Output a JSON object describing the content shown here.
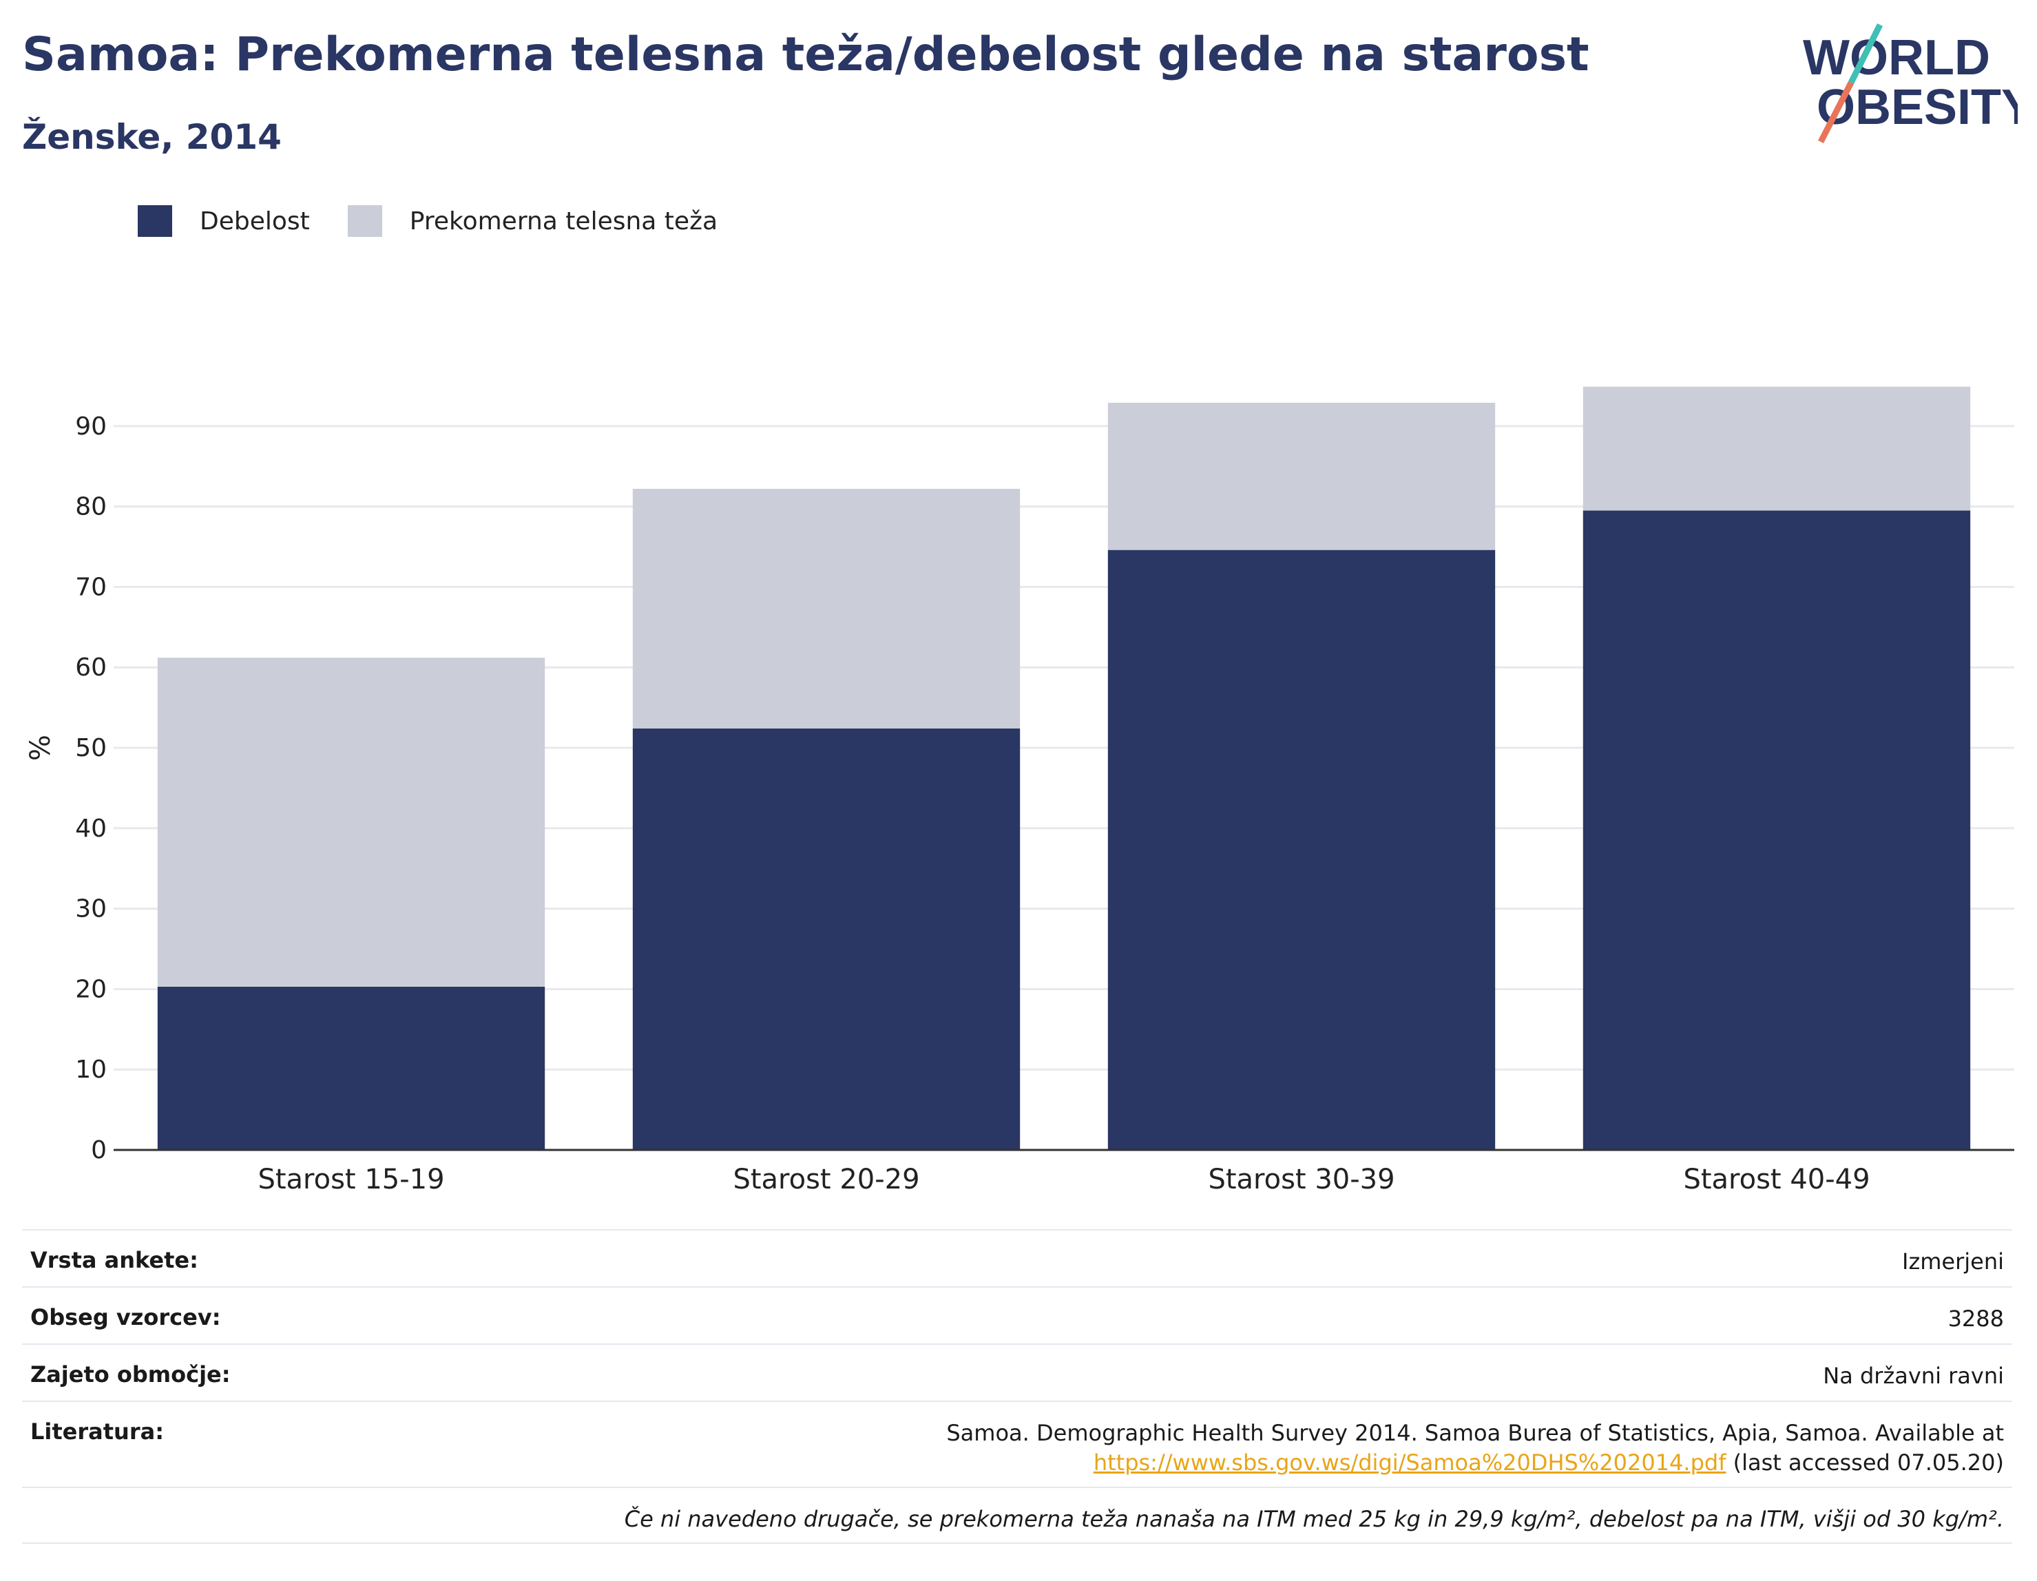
{
  "header": {
    "title": "Samoa: Prekomerna telesna teža/debelost glede na starost",
    "subtitle": "Ženske, 2014"
  },
  "logo": {
    "line1": "WORLD",
    "line2": "OBESITY"
  },
  "legend": [
    {
      "label": "Debelost",
      "color": "#2a3663"
    },
    {
      "label": "Prekomerna telesna teža",
      "color": "#cbcdd8"
    }
  ],
  "chart_data": {
    "type": "bar",
    "stacked": true,
    "categories": [
      "Starost 15-19",
      "Starost 20-29",
      "Starost 30-39",
      "Starost 40-49"
    ],
    "series": [
      {
        "name": "Debelost",
        "values": [
          20.3,
          52.4,
          74.6,
          79.5
        ],
        "color": "#2a3663"
      },
      {
        "name": "Prekomerna telesna teža",
        "values": [
          40.9,
          29.8,
          18.3,
          15.4
        ],
        "color": "#cbcdd8"
      }
    ],
    "ylabel": "%",
    "ylim": [
      0,
      100
    ],
    "yticks": [
      0,
      10,
      20,
      30,
      40,
      50,
      60,
      70,
      80,
      90
    ],
    "grid": true,
    "legend_position": "top-left"
  },
  "meta": {
    "survey_type": {
      "label": "Vrsta ankete:",
      "value": "Izmerjeni"
    },
    "sample_size": {
      "label": "Obseg vzorcev:",
      "value": "3288"
    },
    "coverage": {
      "label": "Zajeto območje:",
      "value": "Na državni ravni"
    },
    "literature": {
      "label": "Literatura:",
      "line1": "Samoa. Demographic Health Survey 2014. Samoa Burea of Statistics, Apia, Samoa. Available at",
      "link": "https://www.sbs.gov.ws/digi/Samoa%20DHS%202014.pdf",
      "suffix": " (last accessed 07.05.20)"
    },
    "note": "Če ni navedeno drugače, se prekomerna teža nanaša na ITM med 25 kg in 29,9 kg/m², debelost pa na ITM, višji od 30 kg/m²."
  }
}
